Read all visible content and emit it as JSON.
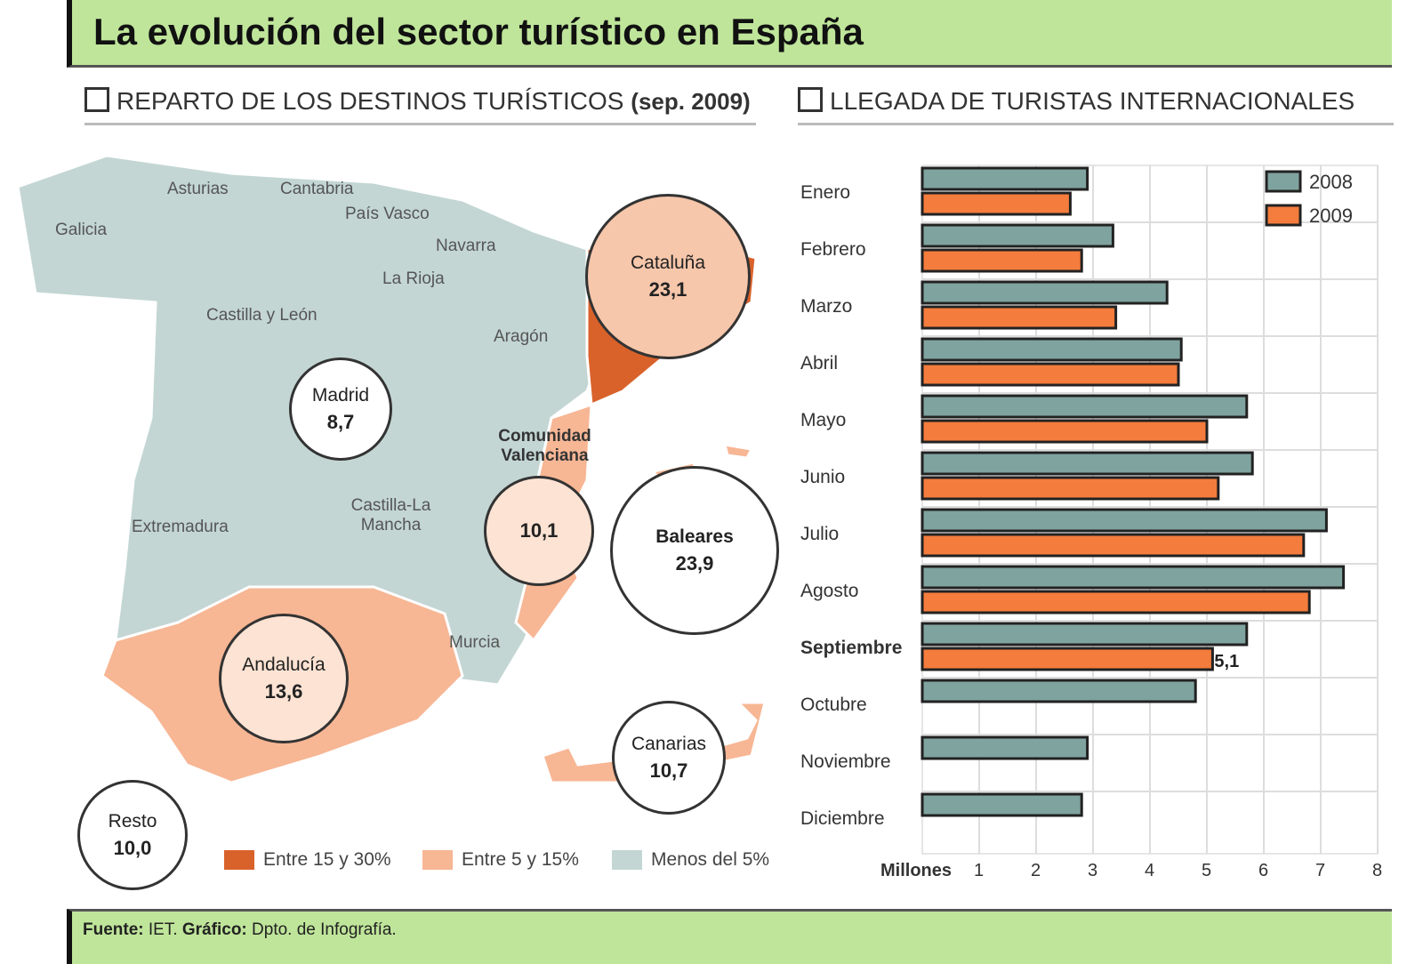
{
  "title": "La evolución del sector turístico en España",
  "map_section": {
    "heading": "REPARTO DE LOS DESTINOS TURÍSTICOS",
    "heading_note": "(sep. 2009)",
    "regions": [
      "Galicia",
      "Asturias",
      "Cantabria",
      "País Vasco",
      "Navarra",
      "La Rioja",
      "Castilla y León",
      "Aragón",
      "Extremadura",
      "Castilla-La Mancha",
      "Murcia",
      "Comunidad Valenciana"
    ],
    "circles": [
      {
        "name": "Cataluña",
        "value": "23,1"
      },
      {
        "name": "Madrid",
        "value": "8,7"
      },
      {
        "name": "",
        "value": "10,1"
      },
      {
        "name": "Baleares",
        "value": "23,9"
      },
      {
        "name": "Andalucía",
        "value": "13,6"
      },
      {
        "name": "Canarias",
        "value": "10,7"
      },
      {
        "name": "Resto",
        "value": "10,0"
      }
    ],
    "legend": [
      {
        "label": "Entre 15 y 30%",
        "color": "#d9622b"
      },
      {
        "label": "Entre 5 y 15%",
        "color": "#f7b694"
      },
      {
        "label": "Menos del 5%",
        "color": "#c3d6d4"
      }
    ]
  },
  "chart_data": {
    "type": "bar",
    "orientation": "horizontal",
    "title": "LLEGADA DE TURISTAS INTERNACIONALES",
    "xlabel": "Millones",
    "xlim": [
      0,
      8
    ],
    "xticks": [
      1,
      2,
      3,
      4,
      5,
      6,
      7,
      8
    ],
    "categories": [
      "Enero",
      "Febrero",
      "Marzo",
      "Abril",
      "Mayo",
      "Junio",
      "Julio",
      "Agosto",
      "Septiembre",
      "Octubre",
      "Noviembre",
      "Diciembre"
    ],
    "series": [
      {
        "name": "2008",
        "color": "#7fa39f",
        "values": [
          2.9,
          3.35,
          4.3,
          4.55,
          5.7,
          5.8,
          7.1,
          7.4,
          5.7,
          4.8,
          2.9,
          2.8
        ]
      },
      {
        "name": "2009",
        "color": "#f47c3c",
        "values": [
          2.6,
          2.8,
          3.4,
          4.5,
          5.0,
          5.2,
          6.7,
          6.8,
          5.1,
          null,
          null,
          null
        ]
      }
    ],
    "annotations": [
      {
        "category": "Septiembre",
        "series": "2009",
        "label": "5,1"
      }
    ],
    "legend": "top-right",
    "grid": true
  },
  "footer": {
    "source_label": "Fuente:",
    "source": "IET.",
    "graphic_label": "Gráfico:",
    "graphic": "Dpto. de Infografía."
  }
}
